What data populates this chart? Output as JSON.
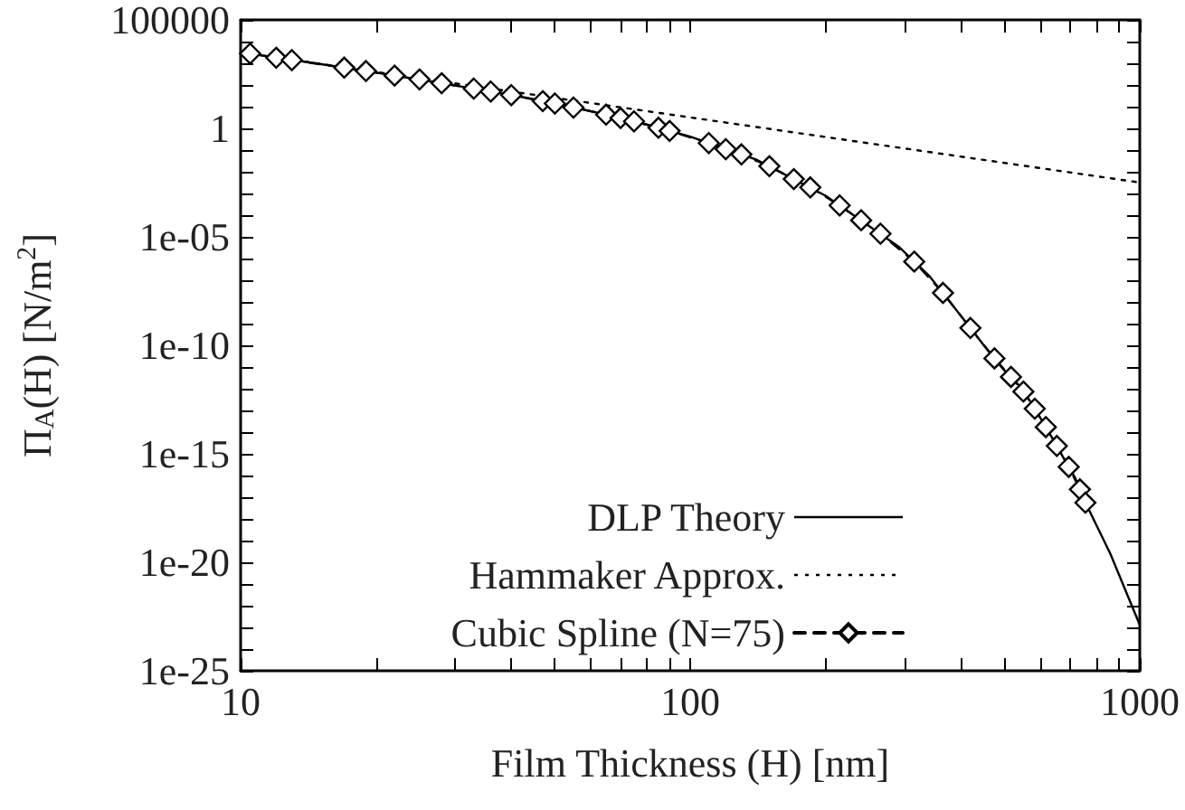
{
  "chart_data": {
    "type": "line",
    "xlabel": "Film Thickness (H) [nm]",
    "ylabel": "Π$_{A}$(H) [N/m$^{2}$]",
    "log": "xy",
    "grid": false,
    "legend": "bottom",
    "xlim": [
      10,
      1000
    ],
    "xticks": [
      10,
      {
        "value": 20,
        "label": null
      },
      {
        "value": 30,
        "label": null
      },
      {
        "value": 40,
        "label": null
      },
      {
        "value": 50,
        "label": null
      },
      {
        "value": 60,
        "label": null
      },
      {
        "value": 70,
        "label": null
      },
      {
        "value": 80,
        "label": null
      },
      {
        "value": 90,
        "label": null
      },
      100,
      {
        "value": 200,
        "label": null
      },
      {
        "value": 300,
        "label": null
      },
      {
        "value": 400,
        "label": null
      },
      {
        "value": 500,
        "label": null
      },
      {
        "value": 600,
        "label": null
      },
      {
        "value": 700,
        "label": null
      },
      {
        "value": 800,
        "label": null
      },
      {
        "value": 900,
        "label": null
      },
      1000
    ],
    "ylim": [
      1e-25,
      100000
    ],
    "yticks": [
      {
        "value": 1e-25,
        "label": "1e-25"
      },
      {
        "value": 1e-24,
        "label": null
      },
      {
        "value": 1e-23,
        "label": null
      },
      {
        "value": 1e-22,
        "label": null
      },
      {
        "value": 1e-21,
        "label": null
      },
      {
        "value": 1e-20,
        "label": "1e-20"
      },
      {
        "value": 1e-19,
        "label": null
      },
      {
        "value": 1e-18,
        "label": null
      },
      {
        "value": 1e-17,
        "label": null
      },
      {
        "value": 1e-16,
        "label": null
      },
      {
        "value": 1e-15,
        "label": "1e-15"
      },
      {
        "value": 1e-14,
        "label": null
      },
      {
        "value": 1e-13,
        "label": null
      },
      {
        "value": 1e-12,
        "label": null
      },
      {
        "value": 1e-11,
        "label": null
      },
      {
        "value": 1e-10,
        "label": "1e-10"
      },
      {
        "value": 1e-09,
        "label": null
      },
      {
        "value": 1e-08,
        "label": null
      },
      {
        "value": 1e-07,
        "label": null
      },
      {
        "value": 1e-06,
        "label": null
      },
      {
        "value": 1e-05,
        "label": "1e-05"
      },
      {
        "value": 0.0001,
        "label": null
      },
      {
        "value": 0.001,
        "label": null
      },
      {
        "value": 0.01,
        "label": null
      },
      {
        "value": 0.1,
        "label": null
      },
      1,
      {
        "value": 10,
        "label": null
      },
      {
        "value": 100,
        "label": null
      },
      {
        "value": 1000,
        "label": null
      },
      {
        "value": 10000,
        "label": null
      },
      100000
    ],
    "series": [
      {
        "name": "DLP Theory",
        "color": "#000000",
        "line_style": "solid",
        "marker": "none",
        "x": [
          10,
          15,
          20,
          30,
          43,
          60,
          80,
          100,
          140,
          200,
          291,
          340,
          395,
          450,
          497,
          536,
          567,
          601,
          636,
          673,
          718,
          755,
          860,
          1000
        ],
        "values": [
          3200,
          930,
          370,
          95,
          26,
          6.3,
          1.5,
          0.42,
          0.037,
          0.00079,
          3.5e-06,
          1.6e-07,
          3.2e-09,
          1e-10,
          7.9e-12,
          1.6e-12,
          3.2e-13,
          4.5e-14,
          6.3e-15,
          7.9e-16,
          7.9e-17,
          6.3e-18,
          2.5e-20,
          1.3e-23
        ]
      },
      {
        "name": "Hammaker Approx.",
        "color": "#000000",
        "line_style": "dotted",
        "marker": "none",
        "x": [
          10,
          100,
          1000
        ],
        "values": [
          3200,
          3.2,
          0.0032
        ]
      },
      {
        "name": "Cubic Spline (N=75)",
        "color": "#000000",
        "line_style": "dashed",
        "marker": "diamond",
        "x": [
          10.5,
          12,
          13,
          17,
          19,
          22,
          25,
          28,
          33,
          36,
          40,
          47,
          50,
          55,
          65,
          70,
          75,
          85,
          90,
          110,
          120,
          130,
          150,
          170,
          185,
          215,
          240,
          265,
          315,
          365,
          420,
          475,
          517,
          551,
          584,
          618,
          654,
          695,
          736,
          757
        ],
        "values": [
          2800,
          1800,
          1400,
          630,
          440,
          270,
          180,
          120,
          68,
          50,
          34,
          18,
          14,
          9.1,
          4.3,
          3,
          2.1,
          1.07,
          0.76,
          0.21,
          0.11,
          0.063,
          0.018,
          0.0046,
          0.0019,
          0.00028,
          5.8e-05,
          1.4e-05,
          7.2e-07,
          2.6e-08,
          6.3e-10,
          2.5e-11,
          3.5e-12,
          7.4e-13,
          1.2e-13,
          1.7e-14,
          2.3e-15,
          2.5e-16,
          2.3e-17,
          5.6e-18
        ]
      }
    ]
  }
}
